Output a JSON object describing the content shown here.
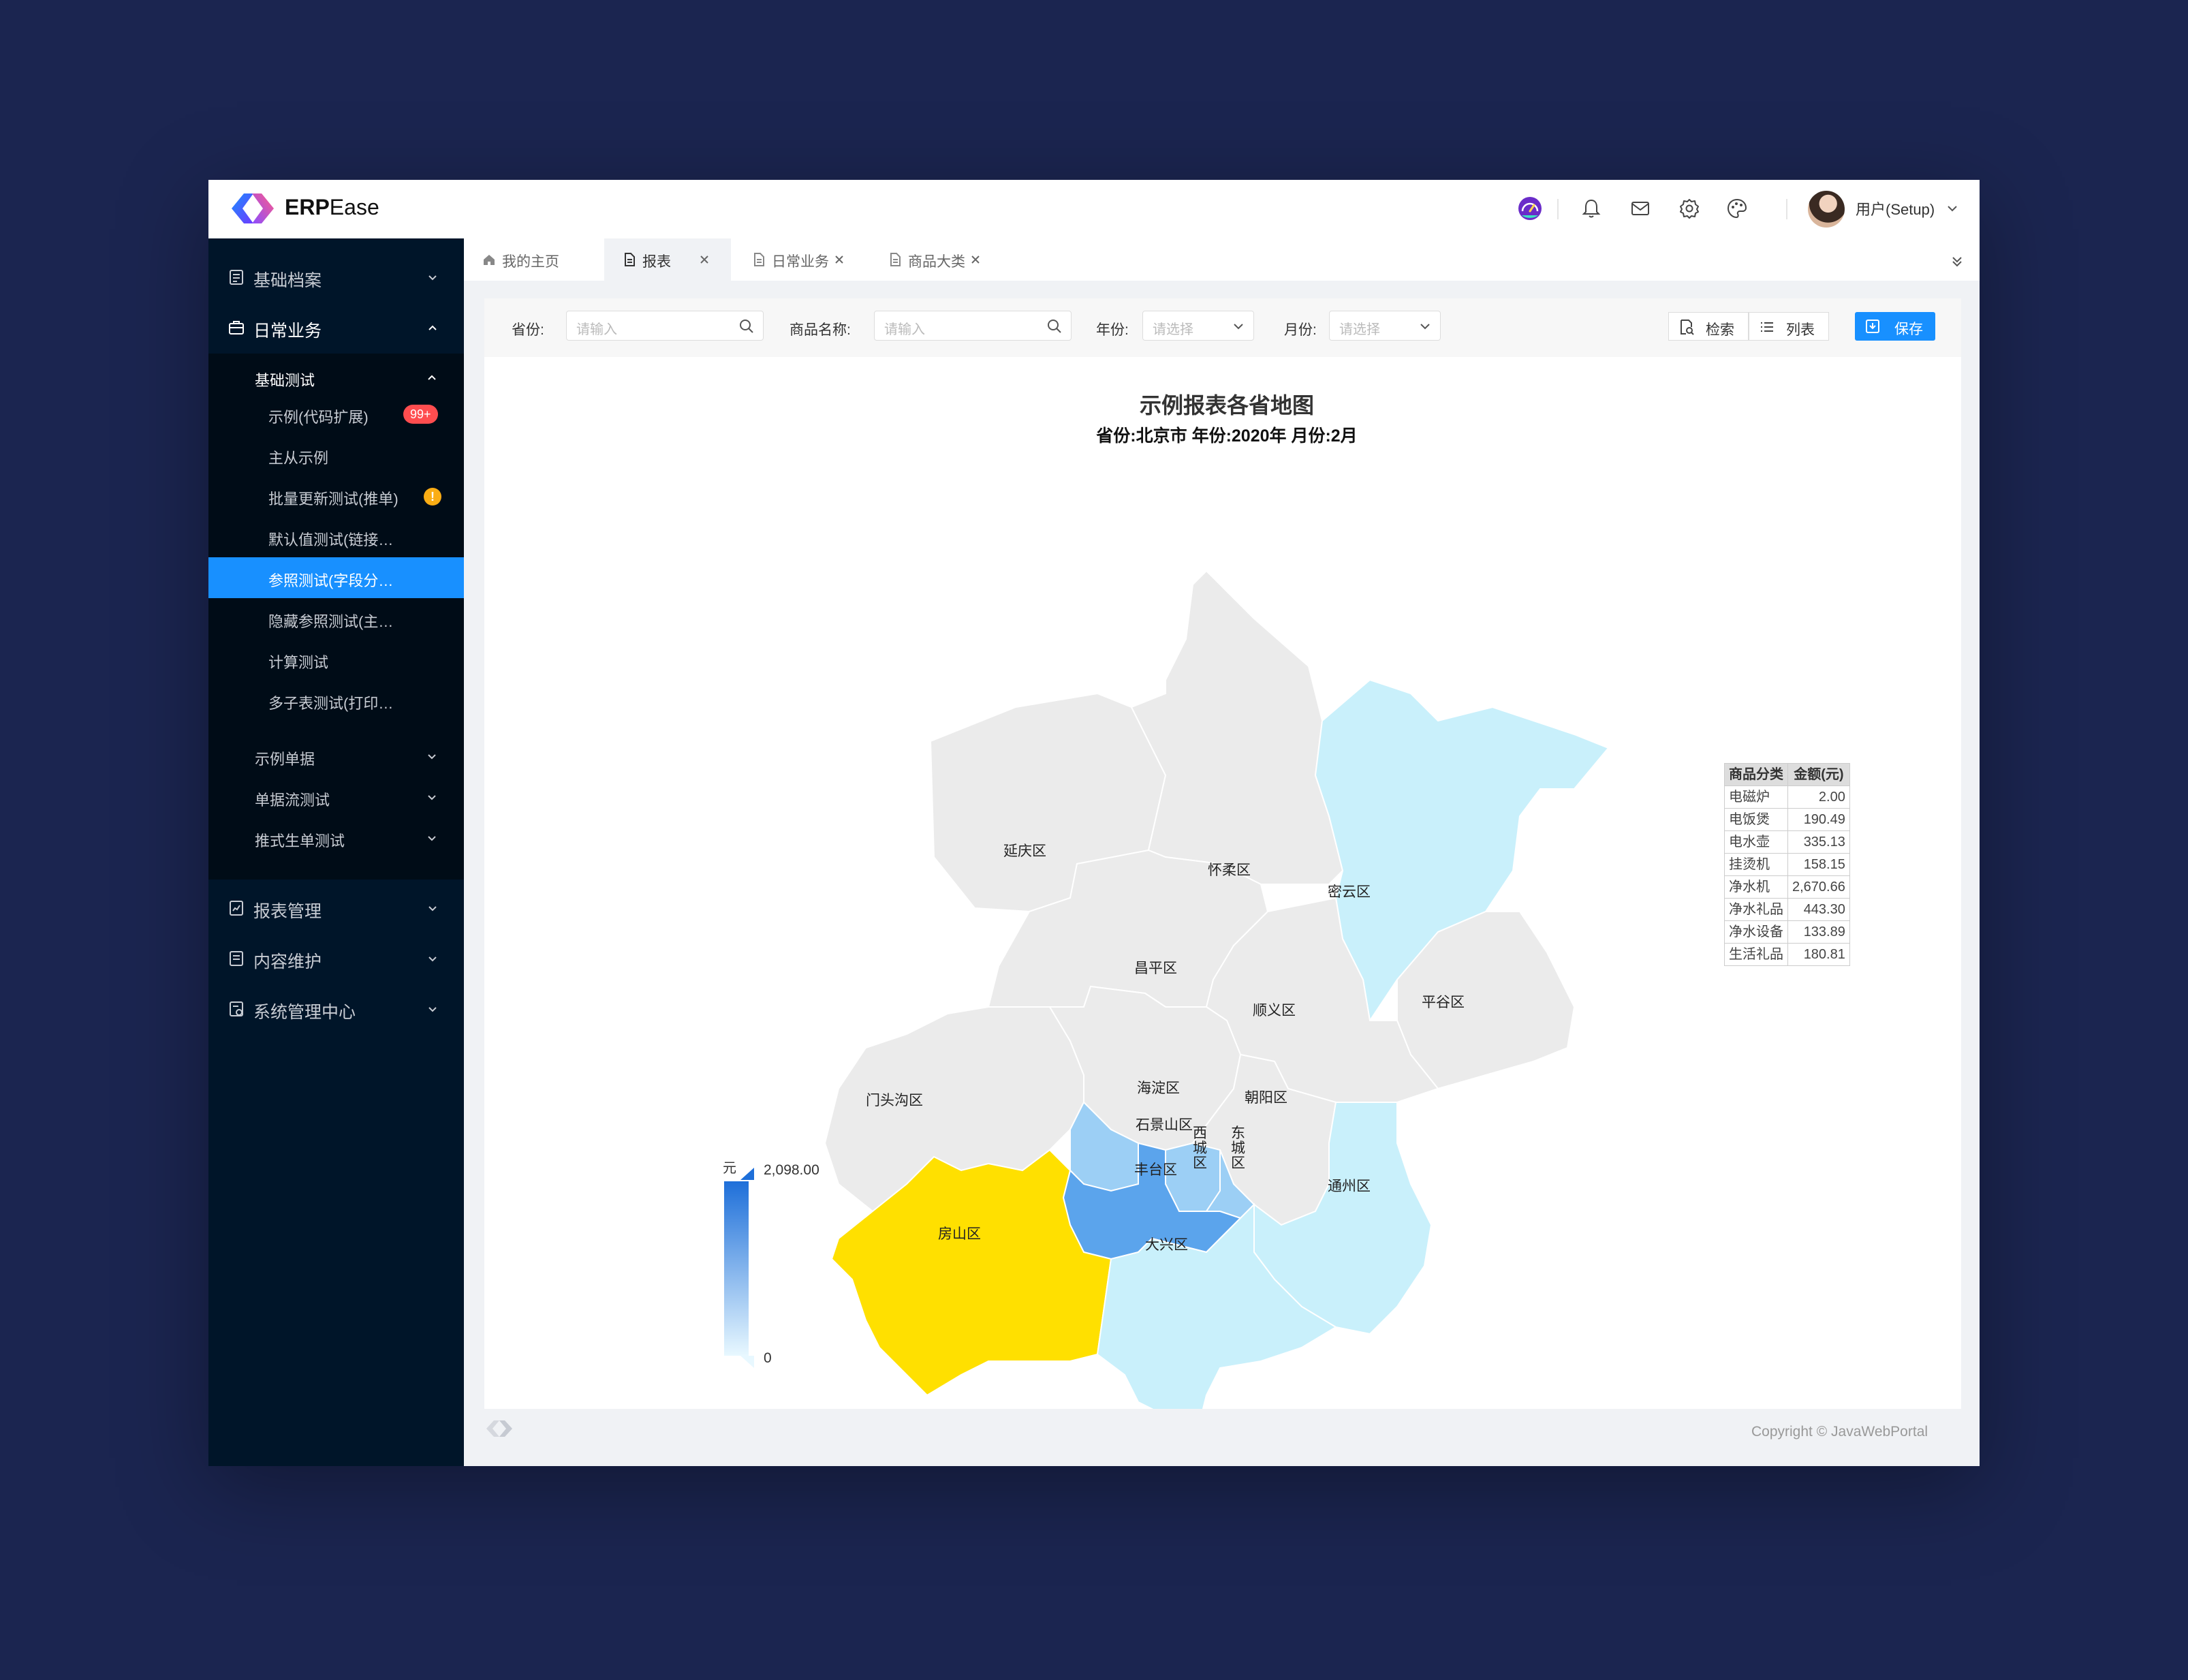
{
  "app": {
    "brand_bold": "ERP",
    "brand_light": "Ease"
  },
  "header": {
    "username": "用户(Setup)",
    "icons": [
      "dashboard-icon",
      "bell-icon",
      "mail-icon",
      "gear-icon",
      "palette-icon"
    ]
  },
  "sidebar": {
    "menus": [
      {
        "label": "基础档案",
        "icon": "folder-icon",
        "expanded": false
      },
      {
        "label": "日常业务",
        "icon": "briefcase-icon",
        "expanded": true
      },
      {
        "label": "报表管理",
        "icon": "report-icon",
        "expanded": false
      },
      {
        "label": "内容维护",
        "icon": "content-icon",
        "expanded": false
      },
      {
        "label": "系统管理中心",
        "icon": "system-icon",
        "expanded": false
      }
    ],
    "group": {
      "label": "基础测试",
      "expanded": true
    },
    "items": [
      {
        "label": "示例(代码扩展)",
        "badge": "99+"
      },
      {
        "label": "主从示例"
      },
      {
        "label": "批量更新测试(推单)",
        "badge": "!"
      },
      {
        "label": "默认值测试(链接…"
      },
      {
        "label": "参照测试(字段分…",
        "active": true
      },
      {
        "label": "隐藏参照测试(主…"
      },
      {
        "label": "计算测试"
      },
      {
        "label": "多子表测试(打印…"
      }
    ],
    "subgroups": [
      {
        "label": "示例单据"
      },
      {
        "label": "单据流测试"
      },
      {
        "label": "推式生单测试"
      }
    ]
  },
  "tabs": [
    {
      "label": "我的主页",
      "icon": "home-icon",
      "closable": false
    },
    {
      "label": "报表",
      "icon": "doc-icon",
      "closable": true,
      "active": true
    },
    {
      "label": "日常业务",
      "icon": "doc-icon",
      "closable": true
    },
    {
      "label": "商品大类",
      "icon": "doc-icon",
      "closable": true
    }
  ],
  "filters": {
    "province_label": "省份:",
    "province_placeholder": "请输入",
    "product_label": "商品名称:",
    "product_placeholder": "请输入",
    "year_label": "年份:",
    "year_placeholder": "请选择",
    "month_label": "月份:",
    "month_placeholder": "请选择",
    "search_label": "检索",
    "list_label": "列表",
    "save_label": "保存"
  },
  "chart_data": {
    "type": "choropleth-map",
    "title": "示例报表各省地图",
    "subtitle": "省份:北京市 年份:2020年 月份:2月",
    "visual_map": {
      "unit": "元",
      "min": 0,
      "max": 2098.0,
      "min_label": "0",
      "max_label": "2,098.00"
    },
    "regions": [
      {
        "name": "延庆区",
        "level": "none"
      },
      {
        "name": "怀柔区",
        "level": "none"
      },
      {
        "name": "密云区",
        "level": "low"
      },
      {
        "name": "昌平区",
        "level": "none"
      },
      {
        "name": "平谷区",
        "level": "none"
      },
      {
        "name": "顺义区",
        "level": "none"
      },
      {
        "name": "门头沟区",
        "level": "none"
      },
      {
        "name": "海淀区",
        "level": "none"
      },
      {
        "name": "朝阳区",
        "level": "none"
      },
      {
        "name": "石景山区",
        "level": "medium"
      },
      {
        "name": "西城区",
        "level": "medium"
      },
      {
        "name": "东城区",
        "level": "medium"
      },
      {
        "name": "丰台区",
        "level": "high"
      },
      {
        "name": "通州区",
        "level": "low"
      },
      {
        "name": "房山区",
        "level": "highlight"
      },
      {
        "name": "大兴区",
        "level": "low"
      }
    ],
    "colors": {
      "none": "#ebebeb",
      "low": "#c9f0fb",
      "medium": "#9ccff5",
      "high": "#5ba4ec",
      "highlight": "#ffe000",
      "border": "#ffffff"
    },
    "table": {
      "headers": [
        "商品分类",
        "金额(元)"
      ],
      "rows": [
        [
          "电磁炉",
          "2.00"
        ],
        [
          "电饭煲",
          "190.49"
        ],
        [
          "电水壶",
          "335.13"
        ],
        [
          "挂烫机",
          "158.15"
        ],
        [
          "净水机",
          "2,670.66"
        ],
        [
          "净水礼品",
          "443.30"
        ],
        [
          "净水设备",
          "133.89"
        ],
        [
          "生活礼品",
          "180.81"
        ]
      ]
    }
  },
  "footer": {
    "copyright": "Copyright  ©  JavaWebPortal"
  }
}
